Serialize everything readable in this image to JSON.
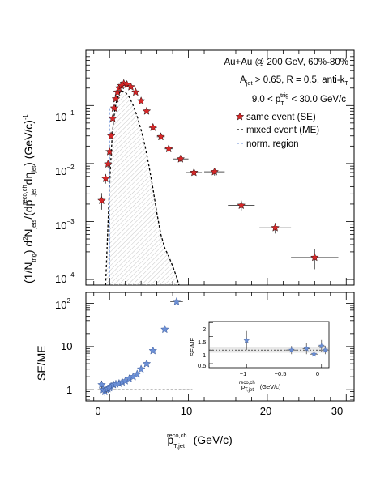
{
  "chart_data": [
    {
      "type": "scatter",
      "panel": "top",
      "xlabel": "p_T,jet^reco,ch (GeV/c)",
      "ylabel": "(1/N_trig) d²N_jets/(dp_T,jet^reco,ch dη_jet) (GeV/c)^-1",
      "yscale": "log",
      "xlim": [
        -3,
        31
      ],
      "ylim": [
        8e-05,
        0.9
      ],
      "y_ticks": [
        "10^{-4}",
        "10^{-3}",
        "10^{-2}",
        "10^{-1}"
      ],
      "annotations": [
        "Au+Au @ 200 GeV, 60%-80%",
        "A_jet > 0.65, R = 0.5, anti-k_T",
        "9.0 < p_T^trig < 30.0 GeV/c"
      ],
      "legend_position": "top-right",
      "series": [
        {
          "name": "same event (SE)",
          "color": "#d62728",
          "x": [
            -1.0,
            -0.5,
            -0.2,
            0.0,
            0.2,
            0.4,
            0.6,
            0.8,
            1.0,
            1.2,
            1.5,
            1.8,
            2.2,
            2.7,
            3.3,
            4.0,
            4.7,
            5.5,
            6.5,
            7.5,
            9.0,
            10.7,
            13.3,
            16.7,
            21.0,
            26.0
          ],
          "y": [
            0.0023,
            0.0055,
            0.0098,
            0.016,
            0.03,
            0.06,
            0.09,
            0.13,
            0.17,
            0.2,
            0.22,
            0.24,
            0.23,
            0.21,
            0.17,
            0.12,
            0.08,
            0.042,
            0.029,
            0.018,
            0.012,
            0.007,
            0.0072,
            0.0019,
            0.00078,
            0.00024
          ],
          "xerr": [
            0,
            0,
            0,
            0,
            0,
            0,
            0,
            0,
            0,
            0,
            0,
            0,
            0,
            0,
            0,
            0,
            0,
            0.5,
            0.5,
            0.5,
            1.0,
            1.0,
            1.3,
            1.7,
            2.0,
            3.0
          ],
          "ylo": [
            0.0016,
            0.0045,
            0.0085,
            0.014,
            0.027,
            0.055,
            0.083,
            0.122,
            0.16,
            0.19,
            0.21,
            0.23,
            0.22,
            0.2,
            0.162,
            0.114,
            0.075,
            0.039,
            0.026,
            0.016,
            0.0107,
            0.0062,
            0.0062,
            0.00155,
            0.00062,
            0.00015
          ],
          "yhi": [
            0.0031,
            0.0066,
            0.0112,
            0.018,
            0.033,
            0.065,
            0.097,
            0.138,
            0.18,
            0.21,
            0.23,
            0.25,
            0.24,
            0.22,
            0.178,
            0.126,
            0.085,
            0.045,
            0.032,
            0.02,
            0.0133,
            0.0078,
            0.0082,
            0.0023,
            0.00095,
            0.00034
          ]
        },
        {
          "name": "mixed event (ME)",
          "style": "dashed-curve",
          "x": [
            -0.5,
            -0.3,
            -0.1,
            0.1,
            0.3,
            0.5,
            0.7,
            0.9,
            1.2,
            1.5,
            2.0,
            2.5,
            3.0,
            3.5,
            4.0,
            4.5,
            5.0,
            5.5,
            6.0,
            6.5,
            7.0,
            7.5,
            8.0,
            8.5,
            8.8
          ],
          "y": [
            8e-05,
            0.0004,
            0.002,
            0.008,
            0.025,
            0.055,
            0.09,
            0.12,
            0.16,
            0.18,
            0.17,
            0.14,
            0.1,
            0.065,
            0.038,
            0.02,
            0.009,
            0.0037,
            0.0014,
            0.0006,
            0.00035,
            0.00025,
            0.00017,
            0.00011,
            8e-05
          ]
        }
      ],
      "norm_region_label": "norm. region",
      "norm_region": [
        -1.0,
        0.0
      ]
    },
    {
      "type": "scatter",
      "panel": "bottom",
      "xlabel": "p_T,jet^reco,ch (GeV/c)",
      "ylabel": "SE/ME",
      "yscale": "log",
      "xlim": [
        -3,
        31
      ],
      "ylim": [
        0.55,
        180
      ],
      "y_ticks": [
        "1",
        "10",
        "10^2"
      ],
      "x_ticks": [
        "0",
        "10",
        "20",
        "30"
      ],
      "reference_line": 1,
      "series": [
        {
          "name": "SE/ME",
          "color": "#6b8fd6",
          "x": [
            -1.0,
            -0.8,
            -0.6,
            -0.4,
            -0.2,
            0.0,
            0.2,
            0.5,
            0.8,
            1.2,
            1.6,
            2.0,
            2.5,
            3.0,
            3.5,
            4.0,
            4.7,
            5.5,
            7.0,
            8.5
          ],
          "y": [
            1.3,
            1.0,
            0.9,
            1.0,
            1.05,
            1.1,
            1.2,
            1.3,
            1.35,
            1.4,
            1.5,
            1.6,
            1.8,
            2.0,
            2.3,
            3.0,
            4.0,
            8.0,
            25,
            110
          ],
          "yerr_rel": [
            0.25,
            0.2,
            0.2,
            0.15,
            0.12,
            0.1,
            0.08,
            0.07,
            0.06,
            0.05,
            0.05,
            0.05,
            0.05,
            0.05,
            0.05,
            0.05,
            0.05,
            0.05,
            0.05,
            0.04
          ],
          "xerr": [
            0,
            0,
            0,
            0,
            0,
            0,
            0,
            0,
            0,
            0,
            0,
            0,
            0,
            0,
            0,
            0,
            0,
            0,
            0,
            0.8
          ]
        }
      ]
    },
    {
      "type": "scatter",
      "panel": "inset",
      "xlabel": "p_T,jet^reco,ch (GeV/c)",
      "ylabel": "SE/ME",
      "xlim": [
        -1.5,
        0.1
      ],
      "ylim": [
        0.35,
        2.05
      ],
      "y_ticks": [
        "0.5",
        "1",
        "1.5",
        "2"
      ],
      "x_ticks": [
        "-1",
        "-0.5",
        "0"
      ],
      "reference_line": 1,
      "norm_band": [
        0.9,
        1.1
      ],
      "series": [
        {
          "name": "SE/ME",
          "color": "#6b8fd6",
          "x": [
            -1.0,
            -0.4,
            -0.2,
            -0.1,
            0.0,
            0.05
          ],
          "y": [
            1.35,
            1.0,
            1.05,
            0.85,
            1.15,
            1.0
          ],
          "yerr": [
            0.35,
            0.15,
            0.2,
            0.18,
            0.22,
            0.15
          ],
          "xerr": [
            0.0,
            0.08,
            0.05,
            0.05,
            0.05,
            0.05
          ]
        }
      ]
    }
  ],
  "text": {
    "top_yaxis_main": "(1/N",
    "top_yaxis_trig": "trig",
    "top_yaxis_mid": ") d",
    "top_yaxis_sup2": "2",
    "top_yaxis_njets": "N",
    "top_yaxis_jets": "jets",
    "top_yaxis_dp": "/(dp",
    "top_yaxis_sup_reco": "reco,ch",
    "top_yaxis_tjet": "T,jet",
    "top_yaxis_deta": "dη",
    "top_yaxis_jet": "jet",
    "top_yaxis_close": ") (GeV/c)",
    "top_yaxis_minus1": "-1",
    "bottom_yaxis": "SE/ME",
    "xaxis_p": "p",
    "xaxis_sup": "reco,ch",
    "xaxis_sub": "T,jet",
    "xaxis_unit": "(GeV/c)",
    "inset_yaxis": "SE/ME",
    "inset_x_p": "p",
    "inset_x_sup": "reco,ch",
    "inset_x_sub": "T,jet",
    "inset_x_unit": "(GeV/c)",
    "ann1": "Au+Au @ 200 GeV, 60%-80%",
    "ann2_a": "A",
    "ann2_sub": "jet",
    "ann2_b": " > 0.65, R = 0.5, anti-k",
    "ann2_sub2": "T",
    "ann3_a": "9.0 < p",
    "ann3_sup": "trig",
    "ann3_sub": "T",
    "ann3_b": " < 30.0 GeV/c",
    "leg_se": "same event (SE)",
    "leg_me": "mixed event (ME)",
    "leg_norm": "norm. region",
    "yt_top_e4": "10",
    "yt_top_e4_exp": "−4",
    "yt_top_e3": "10",
    "yt_top_e3_exp": "−3",
    "yt_top_e2": "10",
    "yt_top_e2_exp": "−2",
    "yt_top_e1": "10",
    "yt_top_e1_exp": "−1",
    "yt_bot_1": "1",
    "yt_bot_10": "10",
    "yt_bot_100": "10",
    "yt_bot_100_exp": "2",
    "xt_0": "0",
    "xt_10": "10",
    "xt_20": "20",
    "xt_30": "30",
    "in_yt_05": "0.5",
    "in_yt_1": "1",
    "in_yt_15": "1.5",
    "in_yt_2": "2",
    "in_xt_m1": "−1",
    "in_xt_m05": "−0.5",
    "in_xt_0": "0"
  },
  "colors": {
    "se_marker": "#d62728",
    "ratio_marker": "#6b8fd6",
    "norm_line": "#6b8fd6",
    "hatch": "#c8c8c8"
  }
}
